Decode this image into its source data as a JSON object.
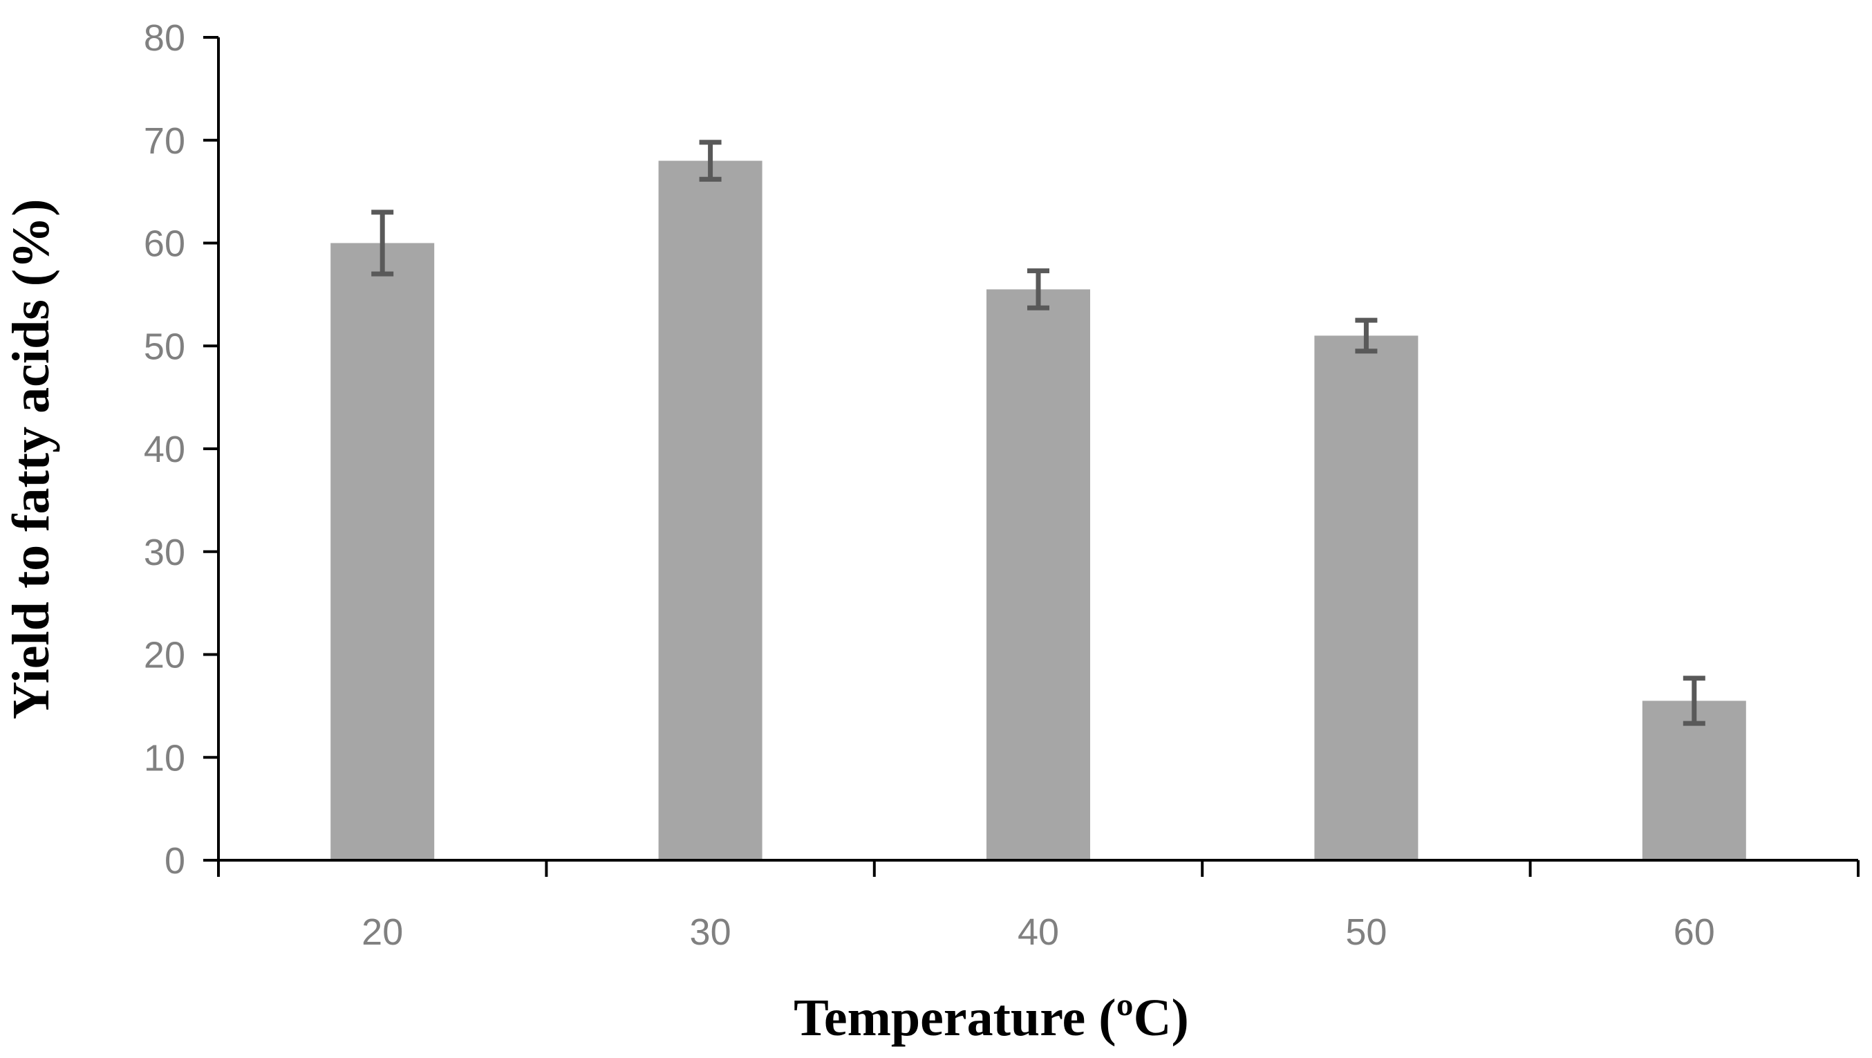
{
  "chart_data": {
    "type": "bar",
    "title": "",
    "xlabel": "Temperature (ºC)",
    "ylabel": "Yield to fatty acids (%)",
    "categories": [
      "20",
      "30",
      "40",
      "50",
      "60"
    ],
    "values": [
      60,
      68,
      55.5,
      51,
      15.5
    ],
    "errors": [
      3,
      1.8,
      1.8,
      1.5,
      2.2
    ],
    "ylim": [
      0,
      80
    ],
    "yticks": [
      "0",
      "10",
      "20",
      "30",
      "40",
      "50",
      "60",
      "70",
      "80"
    ],
    "grid": false,
    "legend": "none",
    "colors": {
      "bar": "#a6a6a6",
      "error": "#595959",
      "axis": "#000000",
      "tick_label": "#808080"
    }
  }
}
